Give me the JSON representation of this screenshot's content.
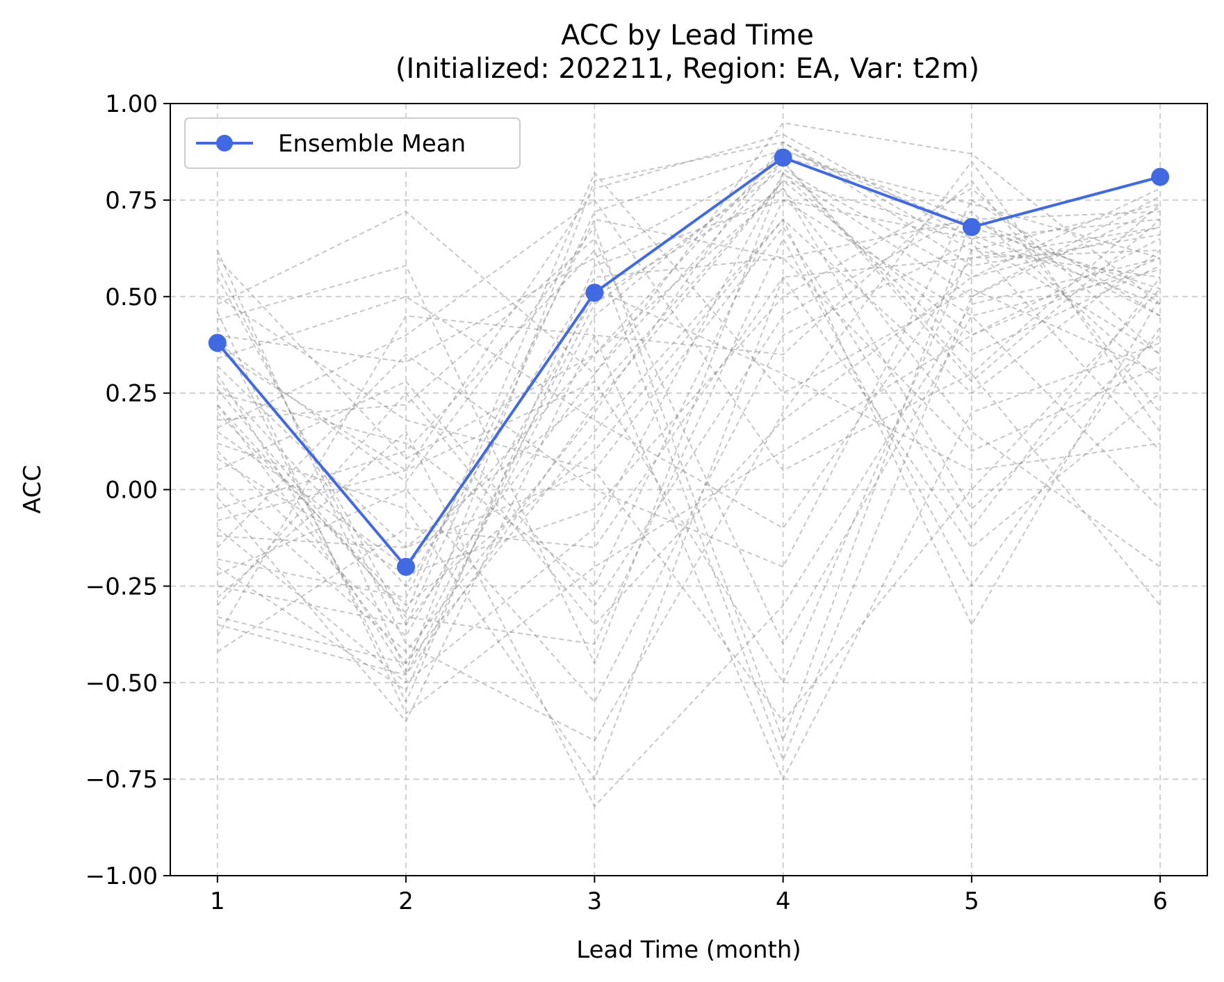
{
  "chart_data": {
    "type": "line",
    "title": "ACC by Lead Time",
    "subtitle": "(Initialized: 202211, Region: EA, Var: t2m)",
    "xlabel": "Lead Time (month)",
    "ylabel": "ACC",
    "x": [
      1,
      2,
      3,
      4,
      5,
      6
    ],
    "xlim": [
      0.75,
      6.25
    ],
    "ylim": [
      -1.0,
      1.0
    ],
    "xticks": [
      "1",
      "2",
      "3",
      "4",
      "5",
      "6"
    ],
    "yticks": [
      "1.00",
      "0.75",
      "0.50",
      "0.25",
      "0.00",
      "−0.25",
      "−0.50",
      "−0.75",
      "−1.00"
    ],
    "ytick_values": [
      1.0,
      0.75,
      0.5,
      0.25,
      0.0,
      -0.25,
      -0.5,
      -0.75,
      -1.0
    ],
    "grid": true,
    "legend_position": "upper-left",
    "series": [
      {
        "name": "Ensemble Mean",
        "values": [
          0.38,
          -0.2,
          0.51,
          0.86,
          0.68,
          0.81
        ],
        "color": "#4169e1",
        "style": "solid",
        "marker": "circle"
      }
    ],
    "members": [
      [
        0.62,
        -0.47,
        0.8,
        0.9,
        0.62,
        0.55
      ],
      [
        0.55,
        -0.35,
        0.72,
        0.88,
        0.7,
        0.72
      ],
      [
        0.48,
        0.72,
        0.3,
        0.95,
        0.87,
        0.48
      ],
      [
        0.44,
        0.58,
        -0.45,
        0.82,
        0.5,
        0.76
      ],
      [
        0.4,
        0.33,
        0.6,
        0.86,
        0.74,
        0.6
      ],
      [
        0.36,
        0.05,
        0.78,
        0.92,
        0.65,
        0.7
      ],
      [
        0.32,
        -0.15,
        0.25,
        0.8,
        0.4,
        0.65
      ],
      [
        0.3,
        -0.48,
        0.45,
        0.85,
        0.3,
        0.74
      ],
      [
        0.28,
        -0.25,
        0.55,
        0.6,
        0.7,
        0.5
      ],
      [
        0.25,
        0.12,
        -0.25,
        0.75,
        0.65,
        0.35
      ],
      [
        0.22,
        -0.45,
        0.48,
        0.83,
        0.55,
        0.78
      ],
      [
        0.2,
        -0.3,
        0.1,
        0.7,
        0.25,
        0.62
      ],
      [
        0.18,
        0.22,
        0.65,
        -0.4,
        0.45,
        0.57
      ],
      [
        0.15,
        -0.2,
        0.35,
        0.88,
        0.68,
        0.52
      ],
      [
        0.12,
        -0.05,
        -0.75,
        0.55,
        0.6,
        0.68
      ],
      [
        0.1,
        -0.38,
        0.5,
        0.78,
        -0.05,
        0.4
      ],
      [
        0.05,
        0.28,
        -0.3,
        0.45,
        0.72,
        0.28
      ],
      [
        0.02,
        -0.42,
        0.2,
        0.9,
        0.58,
        0.66
      ],
      [
        -0.02,
        -0.6,
        0.4,
        0.35,
        0.8,
        0.2
      ],
      [
        -0.05,
        0.1,
        0.62,
        -0.7,
        0.5,
        0.73
      ],
      [
        -0.1,
        -0.5,
        -0.1,
        0.82,
        0.35,
        0.58
      ],
      [
        -0.15,
        0.35,
        0.0,
        -0.2,
        0.75,
        0.45
      ],
      [
        -0.18,
        -0.28,
        0.7,
        0.6,
        0.1,
        0.32
      ],
      [
        -0.22,
        0.0,
        -0.55,
        0.4,
        0.64,
        0.1
      ],
      [
        -0.25,
        -0.35,
        0.3,
        0.85,
        0.28,
        0.7
      ],
      [
        -0.28,
        0.15,
        -0.82,
        -0.3,
        0.48,
        0.6
      ],
      [
        -0.33,
        -0.45,
        0.15,
        0.7,
        -0.35,
        0.5
      ],
      [
        -0.38,
        0.45,
        0.4,
        -0.75,
        0.2,
        0.38
      ],
      [
        -0.42,
        -0.1,
        -0.15,
        0.55,
        -0.15,
        0.25
      ],
      [
        0.58,
        -0.4,
        -0.65,
        0.2,
        0.85,
        0.15
      ],
      [
        0.5,
        0.18,
        0.05,
        -0.6,
        0.0,
        0.52
      ],
      [
        0.42,
        -0.55,
        0.58,
        0.75,
        0.45,
        -0.05
      ],
      [
        0.34,
        0.5,
        0.18,
        -0.1,
        0.6,
        0.62
      ],
      [
        0.26,
        -0.33,
        -0.4,
        0.65,
        -0.25,
        0.42
      ],
      [
        0.16,
        0.4,
        0.75,
        0.05,
        0.3,
        -0.3
      ],
      [
        0.08,
        -0.22,
        -0.05,
        0.5,
        0.78,
        0.35
      ],
      [
        -0.08,
        0.05,
        0.28,
        -0.5,
        0.62,
        0.74
      ],
      [
        -0.2,
        -0.52,
        0.52,
        0.3,
        0.05,
        0.12
      ],
      [
        -0.3,
        0.25,
        -0.35,
        0.18,
        0.55,
        0.68
      ],
      [
        0.6,
        0.08,
        0.35,
        0.78,
        0.15,
        -0.2
      ],
      [
        0.46,
        -0.58,
        -0.2,
        0.1,
        0.4,
        0.6
      ],
      [
        0.38,
        0.02,
        0.68,
        -0.65,
        0.7,
        0.45
      ],
      [
        -0.12,
        -0.15,
        0.05,
        0.68,
        -0.1,
        0.55
      ],
      [
        0.22,
        -0.32,
        0.82,
        0.25,
        0.52,
        0.3
      ],
      [
        -0.35,
        -0.48,
        0.22,
        0.8,
        0.66,
        0.48
      ]
    ]
  }
}
